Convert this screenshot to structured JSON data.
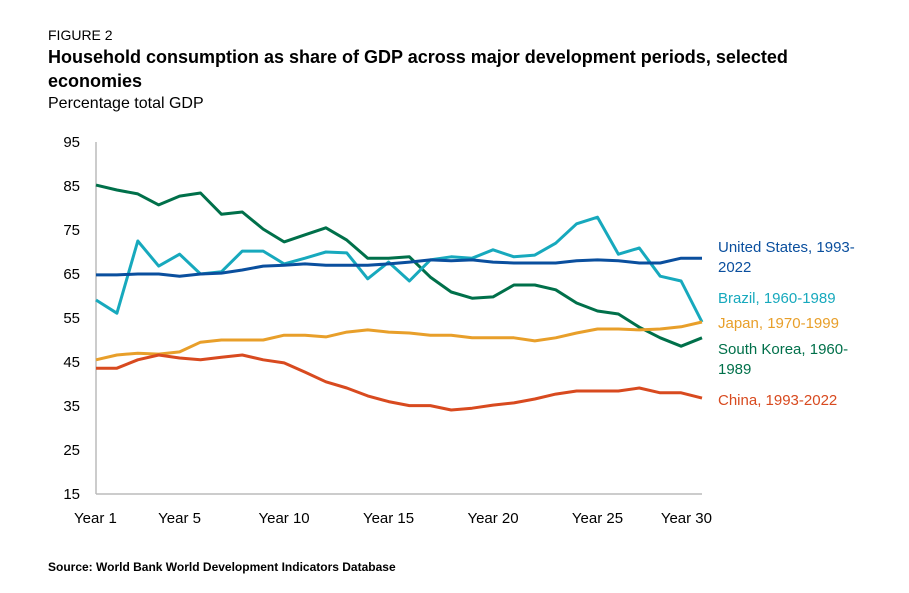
{
  "figure_label": "FIGURE 2",
  "source": "Source: World Bank World Development Indicators Database",
  "chart_data": {
    "type": "line",
    "title": "Household consumption as share of GDP across major development periods, selected economies",
    "ylabel": "Percentage total GDP",
    "xlabel": "",
    "ylim": [
      15,
      95
    ],
    "yticks": [
      15,
      25,
      35,
      45,
      55,
      65,
      75,
      85,
      95
    ],
    "xticks": [
      {
        "x": 1,
        "label": "Year 1"
      },
      {
        "x": 5,
        "label": "Year 5"
      },
      {
        "x": 10,
        "label": "Year 10"
      },
      {
        "x": 15,
        "label": "Year 15"
      },
      {
        "x": 20,
        "label": "Year 20"
      },
      {
        "x": 25,
        "label": "Year 25"
      },
      {
        "x": 30,
        "label": "Year 30"
      }
    ],
    "x": [
      1,
      2,
      3,
      4,
      5,
      6,
      7,
      8,
      9,
      10,
      11,
      12,
      13,
      14,
      15,
      16,
      17,
      18,
      19,
      20,
      21,
      22,
      23,
      24,
      25,
      26,
      27,
      28,
      29,
      30
    ],
    "grid": false,
    "legend": "direct labels right",
    "series": [
      {
        "name": "South Korea, 1960-1989",
        "label_lines": [
          "South Korea, 1960-",
          "1989"
        ],
        "color": "#00704a",
        "values": [
          85.2,
          84.1,
          83.2,
          80.7,
          82.7,
          83.4,
          78.6,
          79.1,
          75.2,
          72.3,
          73.9,
          75.5,
          72.7,
          68.6,
          68.6,
          68.9,
          64.3,
          60.9,
          59.5,
          59.8,
          62.5,
          62.5,
          61.4,
          58.4,
          56.6,
          55.9,
          52.9,
          50.5,
          48.6,
          50.5
        ]
      },
      {
        "name": "Brazil, 1960-1989",
        "label_lines": [
          "Brazil, 1960-1989"
        ],
        "color": "#17a9bd",
        "values": [
          59.1,
          56.1,
          72.5,
          66.8,
          69.5,
          65.0,
          65.5,
          70.2,
          70.2,
          67.3,
          68.6,
          70.0,
          69.8,
          63.9,
          67.7,
          63.4,
          68.2,
          68.9,
          68.6,
          70.5,
          68.9,
          69.3,
          72.0,
          76.4,
          77.9,
          69.5,
          70.9,
          64.5,
          63.4,
          54.1
        ]
      },
      {
        "name": "United States, 1993-2022",
        "label_lines": [
          "United States, 1993-",
          "2022"
        ],
        "color": "#0a4f9e",
        "values": [
          64.8,
          64.8,
          65.0,
          65.0,
          64.5,
          65.0,
          65.2,
          65.9,
          66.8,
          67.0,
          67.3,
          67.0,
          67.0,
          67.0,
          67.3,
          67.7,
          68.2,
          68.0,
          68.2,
          67.7,
          67.5,
          67.5,
          67.5,
          68.0,
          68.2,
          68.0,
          67.5,
          67.5,
          68.6,
          68.6
        ]
      },
      {
        "name": "Japan, 1970-1999",
        "label_lines": [
          "Japan, 1970-1999"
        ],
        "color": "#e89f2a",
        "values": [
          45.5,
          46.6,
          47.0,
          46.8,
          47.3,
          49.5,
          50.0,
          50.0,
          50.0,
          51.1,
          51.1,
          50.7,
          51.8,
          52.3,
          51.8,
          51.6,
          51.1,
          51.1,
          50.5,
          50.5,
          50.5,
          49.8,
          50.5,
          51.6,
          52.5,
          52.5,
          52.3,
          52.5,
          53.0,
          54.1
        ]
      },
      {
        "name": "China, 1993-2022",
        "label_lines": [
          "China, 1993-2022"
        ],
        "color": "#d84a1f",
        "values": [
          43.6,
          43.6,
          45.5,
          46.6,
          45.9,
          45.5,
          46.1,
          46.6,
          45.5,
          44.8,
          42.7,
          40.5,
          39.1,
          37.3,
          36.0,
          35.1,
          35.1,
          34.1,
          34.5,
          35.2,
          35.7,
          36.6,
          37.7,
          38.4,
          38.4,
          38.4,
          39.1,
          38.0,
          38.0,
          36.8
        ]
      }
    ]
  }
}
